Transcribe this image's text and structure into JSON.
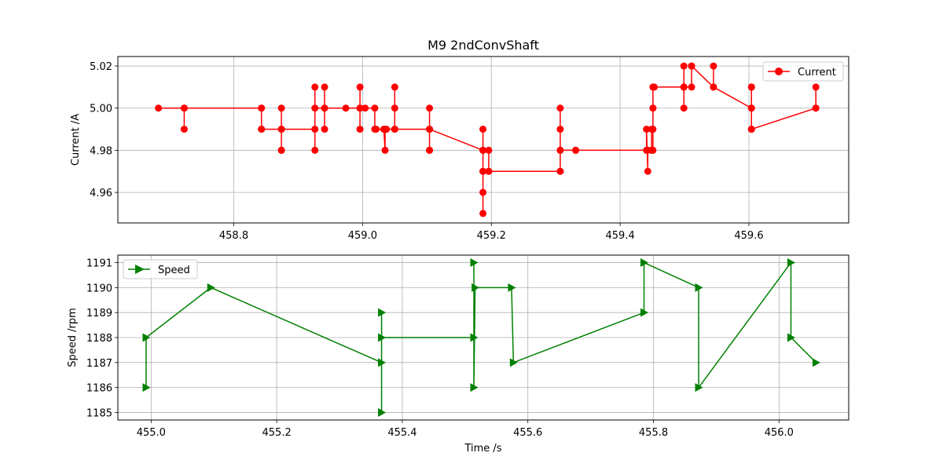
{
  "chart_data": [
    {
      "type": "line",
      "title": "M9 2ndConvShaft",
      "xlabel": "",
      "ylabel": "Current /A",
      "xlim": [
        458.62,
        459.755
      ],
      "ylim": [
        4.9455,
        5.0245
      ],
      "xticks": [
        458.8,
        459.0,
        459.2,
        459.4,
        459.6
      ],
      "xtick_labels": [
        "458.8",
        "459.0",
        "459.2",
        "459.4",
        "459.6"
      ],
      "yticks": [
        4.96,
        4.98,
        5.0,
        5.02
      ],
      "ytick_labels": [
        "4.96",
        "4.98",
        "5.00",
        "5.02"
      ],
      "grid": true,
      "legend_position": "top-right",
      "series": [
        {
          "name": "Current",
          "color": "#ff0000",
          "marker": "circle",
          "points": [
            [
              458.683,
              5.0
            ],
            [
              458.723,
              5.0
            ],
            [
              458.723,
              4.99
            ],
            [
              458.723,
              5.0
            ],
            [
              458.843,
              5.0
            ],
            [
              458.843,
              4.99
            ],
            [
              458.843,
              5.0
            ],
            [
              458.843,
              4.99
            ],
            [
              458.874,
              4.99
            ],
            [
              458.874,
              5.0
            ],
            [
              458.874,
              4.98
            ],
            [
              458.874,
              4.98
            ],
            [
              458.874,
              4.99
            ],
            [
              458.926,
              4.99
            ],
            [
              458.926,
              5.01
            ],
            [
              458.926,
              4.98
            ],
            [
              458.926,
              5.0
            ],
            [
              458.941,
              5.0
            ],
            [
              458.941,
              5.01
            ],
            [
              458.941,
              4.99
            ],
            [
              458.941,
              5.0
            ],
            [
              458.974,
              5.0
            ],
            [
              458.996,
              5.0
            ],
            [
              458.996,
              5.01
            ],
            [
              458.996,
              4.99
            ],
            [
              458.996,
              5.0
            ],
            [
              459.004,
              5.0
            ],
            [
              459.019,
              5.0
            ],
            [
              459.019,
              4.99
            ],
            [
              459.021,
              4.99
            ],
            [
              459.033,
              4.99
            ],
            [
              459.035,
              4.98
            ],
            [
              459.035,
              4.99
            ],
            [
              459.037,
              4.99
            ],
            [
              459.05,
              4.99
            ],
            [
              459.05,
              5.01
            ],
            [
              459.05,
              5.0
            ],
            [
              459.05,
              4.99
            ],
            [
              459.104,
              4.99
            ],
            [
              459.104,
              5.0
            ],
            [
              459.104,
              4.98
            ],
            [
              459.104,
              4.98
            ],
            [
              459.104,
              4.99
            ],
            [
              459.187,
              4.98
            ],
            [
              459.187,
              4.99
            ],
            [
              459.187,
              4.97
            ],
            [
              459.187,
              4.95
            ],
            [
              459.187,
              4.96
            ],
            [
              459.187,
              4.97
            ],
            [
              459.187,
              4.98
            ],
            [
              459.196,
              4.98
            ],
            [
              459.196,
              4.97
            ],
            [
              459.196,
              4.97
            ],
            [
              459.307,
              4.97
            ],
            [
              459.307,
              4.98
            ],
            [
              459.307,
              5.0
            ],
            [
              459.307,
              4.99
            ],
            [
              459.307,
              4.97
            ],
            [
              459.307,
              4.98
            ],
            [
              459.331,
              4.98
            ],
            [
              459.331,
              4.98
            ],
            [
              459.441,
              4.98
            ],
            [
              459.441,
              4.99
            ],
            [
              459.443,
              4.97
            ],
            [
              459.443,
              4.98
            ],
            [
              459.449,
              4.98
            ],
            [
              459.449,
              4.99
            ],
            [
              459.449,
              4.98
            ],
            [
              459.451,
              4.98
            ],
            [
              459.451,
              5.0
            ],
            [
              459.451,
              4.99
            ],
            [
              459.451,
              5.0
            ],
            [
              459.451,
              5.01
            ],
            [
              459.453,
              5.01
            ],
            [
              459.499,
              5.01
            ],
            [
              459.499,
              5.02
            ],
            [
              459.499,
              5.0
            ],
            [
              459.499,
              5.01
            ],
            [
              459.511,
              5.01
            ],
            [
              459.511,
              5.02
            ],
            [
              459.511,
              5.02
            ],
            [
              459.545,
              5.01
            ],
            [
              459.545,
              5.02
            ],
            [
              459.545,
              5.01
            ],
            [
              459.604,
              5.0
            ],
            [
              459.604,
              5.01
            ],
            [
              459.604,
              4.99
            ],
            [
              459.604,
              5.01
            ],
            [
              459.604,
              5.0
            ],
            [
              459.604,
              4.99
            ],
            [
              459.704,
              5.0
            ],
            [
              459.704,
              5.01
            ],
            [
              459.704,
              5.0
            ]
          ]
        }
      ]
    },
    {
      "type": "line",
      "title": "",
      "xlabel": "Time /s",
      "ylabel": "Speed /rpm",
      "xlim": [
        454.947,
        456.111
      ],
      "ylim": [
        1184.7,
        1191.3
      ],
      "xticks": [
        455.0,
        455.2,
        455.4,
        455.6,
        455.8,
        456.0
      ],
      "xtick_labels": [
        "455.0",
        "455.2",
        "455.4",
        "455.6",
        "455.8",
        "456.0"
      ],
      "yticks": [
        1185,
        1186,
        1187,
        1188,
        1189,
        1190,
        1191
      ],
      "ytick_labels": [
        "1185",
        "1186",
        "1187",
        "1188",
        "1189",
        "1190",
        "1191"
      ],
      "grid": true,
      "legend_position": "top-left",
      "series": [
        {
          "name": "Speed",
          "color": "#008000",
          "marker": "triangle-right",
          "points": [
            [
              454.992,
              1186
            ],
            [
              454.992,
              1188
            ],
            [
              455.095,
              1190
            ],
            [
              455.367,
              1187
            ],
            [
              455.367,
              1185
            ],
            [
              455.367,
              1189
            ],
            [
              455.367,
              1188
            ],
            [
              455.514,
              1188
            ],
            [
              455.514,
              1191
            ],
            [
              455.514,
              1186
            ],
            [
              455.516,
              1190
            ],
            [
              455.574,
              1190
            ],
            [
              455.577,
              1187
            ],
            [
              455.785,
              1189
            ],
            [
              455.785,
              1191
            ],
            [
              455.872,
              1190
            ],
            [
              455.872,
              1186
            ],
            [
              456.019,
              1191
            ],
            [
              456.019,
              1188
            ],
            [
              456.059,
              1187
            ]
          ]
        }
      ]
    }
  ]
}
